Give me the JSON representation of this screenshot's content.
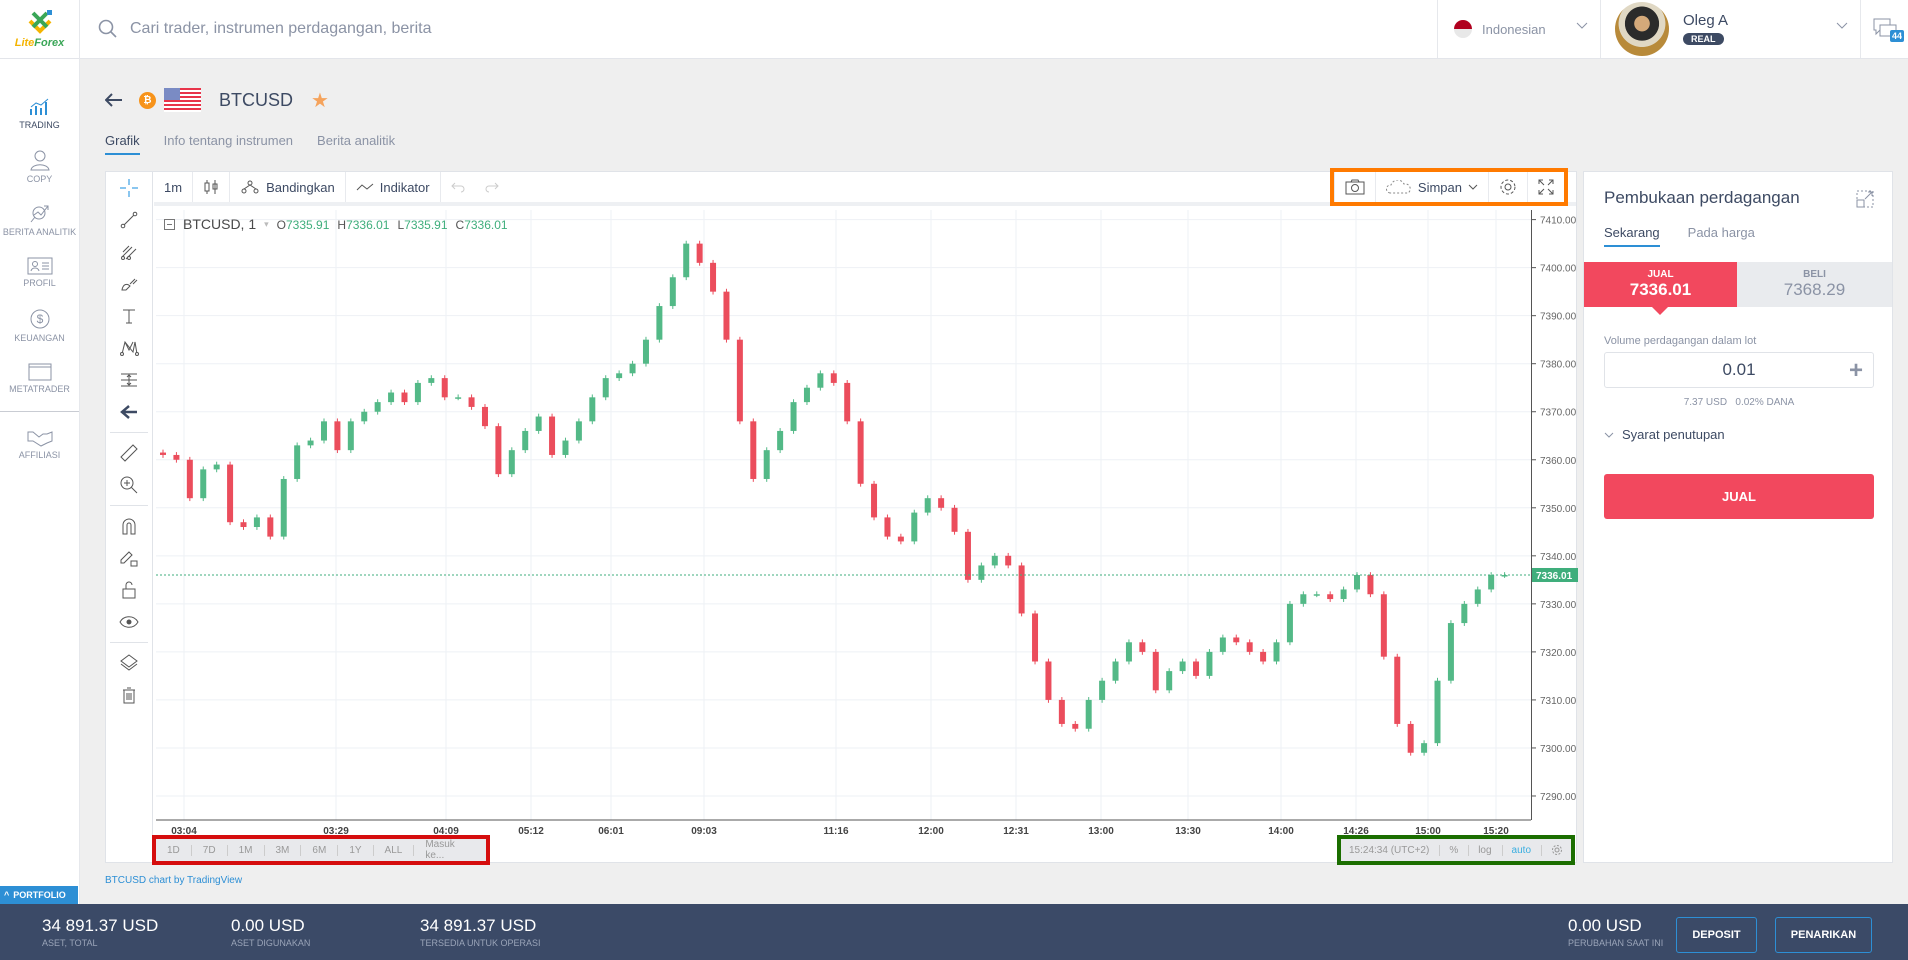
{
  "brand": {
    "name_a": "Lite",
    "name_b": "Forex"
  },
  "search": {
    "placeholder": "Cari trader, instrumen perdagangan, berita"
  },
  "language": {
    "selected": "Indonesian"
  },
  "user": {
    "name": "Oleg A",
    "account_type": "REAL"
  },
  "messages": {
    "count": "44"
  },
  "sidebar": {
    "items": [
      {
        "label": "TRADING",
        "icon": "chart-icon"
      },
      {
        "label": "COPY",
        "icon": "person-icon"
      },
      {
        "label": "BERITA ANALITIK",
        "icon": "analytics-icon"
      },
      {
        "label": "PROFIL",
        "icon": "id-card-icon"
      },
      {
        "label": "KEUANGAN",
        "icon": "dollar-icon"
      },
      {
        "label": "METATRADER",
        "icon": "window-icon"
      },
      {
        "label": "AFFILIASI",
        "icon": "handshake-icon"
      }
    ],
    "portfolio_label": "PORTFOLIO"
  },
  "instrument": {
    "symbol": "BTCUSD",
    "coin_glyph": "₿",
    "star": "★"
  },
  "tabs": [
    {
      "label": "Grafik"
    },
    {
      "label": "Info tentang instrumen"
    },
    {
      "label": "Berita analitik"
    }
  ],
  "chart_toolbar": {
    "interval": "1m",
    "compare": "Bandingkan",
    "indicator": "Indikator",
    "save": "Simpan"
  },
  "legend": {
    "title": "BTCUSD, 1",
    "o_label": "O",
    "o": "7335.91",
    "h_label": "H",
    "h": "7336.01",
    "l_label": "L",
    "l": "7335.91",
    "c_label": "C",
    "c": "7336.01"
  },
  "chart_data": {
    "type": "candlestick",
    "title": "BTCUSD, 1",
    "ylim": [
      7285,
      7412
    ],
    "yticks": [
      "7410.00",
      "7400.00",
      "7390.00",
      "7380.00",
      "7370.00",
      "7360.00",
      "7350.00",
      "7340.00",
      "7330.00",
      "7320.00",
      "7310.00",
      "7300.00",
      "7290.00"
    ],
    "xticks": [
      "03:04",
      "03:29",
      "04:09",
      "05:12",
      "06:01",
      "09:03",
      "11:16",
      "12:00",
      "12:31",
      "13:00",
      "13:30",
      "14:00",
      "14:26",
      "15:00",
      "15:20"
    ],
    "last_price": "7336.01",
    "colors": {
      "up": "#53b987",
      "down": "#eb4d5c",
      "last_price": "#3fae7c"
    },
    "closes": [
      7361,
      7360,
      7352,
      7358,
      7359,
      7347,
      7346,
      7348,
      7344,
      7356,
      7363,
      7364,
      7368,
      7362,
      7368,
      7370,
      7372,
      7374,
      7372,
      7376,
      7377,
      7373,
      7373,
      7371,
      7367,
      7357,
      7362,
      7366,
      7369,
      7361,
      7364,
      7368,
      7373,
      7377,
      7378,
      7380,
      7385,
      7392,
      7398,
      7405,
      7401,
      7395,
      7385,
      7368,
      7356,
      7362,
      7366,
      7372,
      7375,
      7378,
      7376,
      7368,
      7355,
      7348,
      7344,
      7343,
      7349,
      7352,
      7350,
      7345,
      7335,
      7338,
      7340,
      7338,
      7328,
      7318,
      7310,
      7305,
      7304,
      7310,
      7314,
      7318,
      7322,
      7320,
      7312,
      7316,
      7318,
      7315,
      7320,
      7323,
      7322,
      7320,
      7318,
      7322,
      7330,
      7332,
      7332,
      7331,
      7333,
      7336,
      7332,
      7319,
      7305,
      7299,
      7301,
      7314,
      7326,
      7330,
      7333,
      7336,
      7336
    ]
  },
  "range_bar": [
    "1D",
    "7D",
    "1M",
    "3M",
    "6M",
    "1Y",
    "ALL",
    "Masuk ke..."
  ],
  "status_bar": {
    "time": "15:24:34 (UTC+2)",
    "percent": "%",
    "log": "log",
    "auto": "auto"
  },
  "credit": "BTCUSD chart by TradingView",
  "trade_panel": {
    "title": "Pembukaan perdagangan",
    "tabs": [
      "Sekarang",
      "Pada harga"
    ],
    "sell_label": "JUAL",
    "sell_price": "7336.01",
    "buy_label": "BELI",
    "buy_price": "7368.29",
    "volume_label": "Volume perdagangan dalam lot",
    "volume_value": "0.01",
    "volume_info": "7.37 USD   0.02% DANA",
    "closing_conditions": "Syarat penutupan",
    "submit": "JUAL"
  },
  "footer": {
    "total_assets_value": "34 891.37 USD",
    "total_assets_label": "ASET, TOTAL",
    "used_assets_value": "0.00 USD",
    "used_assets_label": "ASET DIGUNAKAN",
    "available_value": "34 891.37 USD",
    "available_label": "TERSEDIA UNTUK OPERASI",
    "change_value": "0.00 USD",
    "change_label": "PERUBAHAN SAAT INI",
    "deposit": "DEPOSIT",
    "withdraw": "PENARIKAN"
  }
}
